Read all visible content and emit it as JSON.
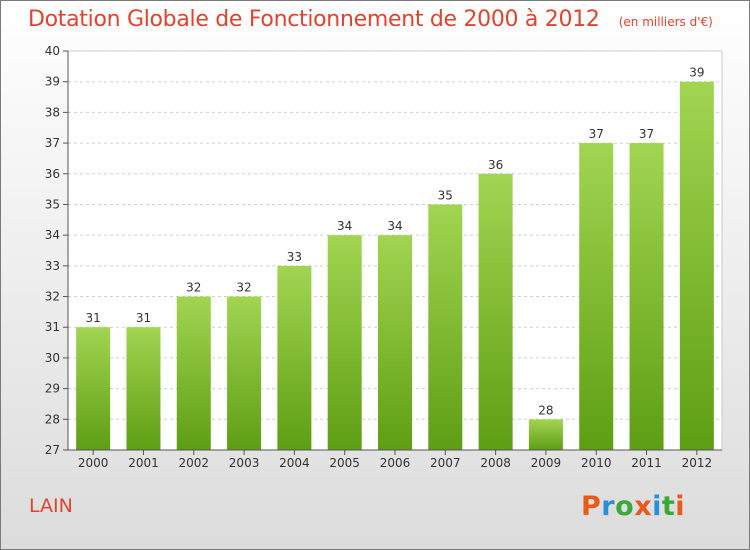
{
  "chart_data": {
    "type": "bar",
    "title": "Dotation Globale de Fonctionnement de 2000 à 2012",
    "subtitle": "(en milliers d'€)",
    "categories": [
      "2000",
      "2001",
      "2002",
      "2003",
      "2004",
      "2005",
      "2006",
      "2007",
      "2008",
      "2009",
      "2010",
      "2011",
      "2012"
    ],
    "values": [
      31,
      31,
      32,
      32,
      33,
      34,
      34,
      35,
      36,
      28,
      37,
      37,
      39
    ],
    "ylim": [
      27,
      40
    ],
    "yticks": [
      27,
      28,
      29,
      30,
      31,
      32,
      33,
      34,
      35,
      36,
      37,
      38,
      39,
      40
    ],
    "grid": true,
    "colors": {
      "bar_light": "#a2d551",
      "bar_dark": "#5e9e14",
      "title": "#e0442f"
    }
  },
  "footer": {
    "place": "LAIN",
    "logo": "Proxiti",
    "logo_colors": [
      "#e85a1a",
      "#2a8fd6",
      "#3aa83a",
      "#e85a1a",
      "#2a8fd6",
      "#3aa83a",
      "#e85a1a"
    ]
  }
}
